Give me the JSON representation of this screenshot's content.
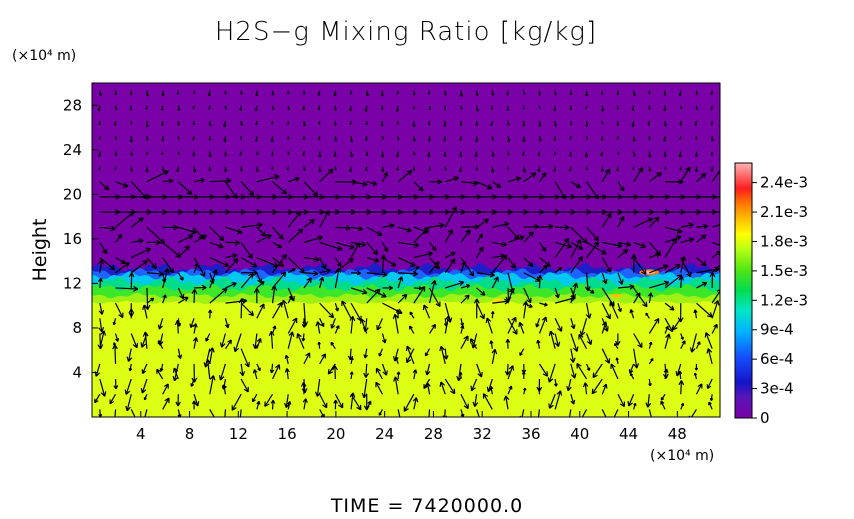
{
  "chart_data": {
    "type": "heatmap",
    "title": "H2S−g Mixing Ratio [kg/kg]",
    "xlabel": "",
    "ylabel": "Height",
    "x_unit": "(×10⁴ m)",
    "y_unit": "(×10⁴ m)",
    "x_ticks": [
      4,
      8,
      12,
      16,
      20,
      24,
      28,
      32,
      36,
      40,
      44,
      48
    ],
    "y_ticks": [
      4,
      8,
      12,
      16,
      20,
      24,
      28
    ],
    "xlim": [
      0,
      51.5
    ],
    "ylim": [
      0,
      30
    ],
    "colorbar": {
      "ticks": [
        "0",
        "3e-4",
        "6e-4",
        "9e-4",
        "1.2e-3",
        "1.5e-3",
        "1.8e-3",
        "2.1e-3",
        "2.4e-3"
      ],
      "values": [
        0,
        0.0003,
        0.0006,
        0.0009,
        0.0012,
        0.0015,
        0.0018,
        0.0021,
        0.0024
      ],
      "range": [
        0,
        0.0026
      ]
    },
    "field": {
      "background_below": 0.0016,
      "background_above": 0.0,
      "band_top_height": 13,
      "green_layer_height": [
        11.5,
        12.5
      ]
    },
    "footer": "TIME  =  7420000.0"
  },
  "colors": {
    "plot_background": "#7a00a8",
    "lower_field": "#dcff14"
  }
}
